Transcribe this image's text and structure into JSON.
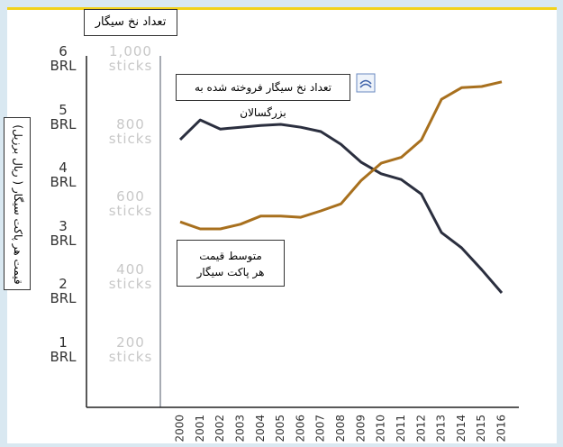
{
  "chart_data": {
    "type": "line",
    "y_label": "قیمت هر پاکت سیگار ( ریال برزیل)",
    "y2_label": "تعداد نخ سیگار",
    "categories": [
      "2000",
      "2001",
      "2002",
      "2003",
      "2004",
      "2005",
      "2006",
      "2007",
      "2008",
      "2009",
      "2010",
      "2011",
      "2012",
      "2013",
      "2014",
      "2015",
      "2016"
    ],
    "series": [
      {
        "name": "تعداد نخ سیگار فروخته شده به بزرگسالان",
        "color": "#2b2f3f",
        "axis": "y2",
        "values": [
          777,
          831,
          806,
          811,
          816,
          819,
          811,
          799,
          764,
          715,
          683,
          667,
          627,
          521,
          479,
          419,
          355
        ]
      },
      {
        "name": "متوسط قیمت هر پاکت سیگار",
        "color": "#a8701e",
        "axis": "y",
        "values": [
          3.19,
          3.07,
          3.07,
          3.15,
          3.29,
          3.29,
          3.27,
          3.38,
          3.5,
          3.9,
          4.2,
          4.3,
          4.6,
          5.3,
          5.5,
          5.52,
          5.6
        ]
      }
    ],
    "ylim": [
      0,
      6
    ],
    "yticks": [
      {
        "value": 1,
        "label": "1 BRL"
      },
      {
        "value": 2,
        "label": "2 BRL"
      },
      {
        "value": 3,
        "label": "3 BRL"
      },
      {
        "value": 4,
        "label": "4 BRL"
      },
      {
        "value": 5,
        "label": "5 BRL"
      },
      {
        "value": 6,
        "label": "6 BRL"
      }
    ],
    "y2lim": [
      40,
      1000
    ],
    "y2ticks": [
      {
        "value": 200,
        "label": "200 sticks"
      },
      {
        "value": 400,
        "label": "400 sticks"
      },
      {
        "value": 600,
        "label": "600 sticks"
      },
      {
        "value": 800,
        "label": "800 sticks"
      },
      {
        "value": 1000,
        "label": "1,000 sticks"
      }
    ],
    "grid": false
  }
}
